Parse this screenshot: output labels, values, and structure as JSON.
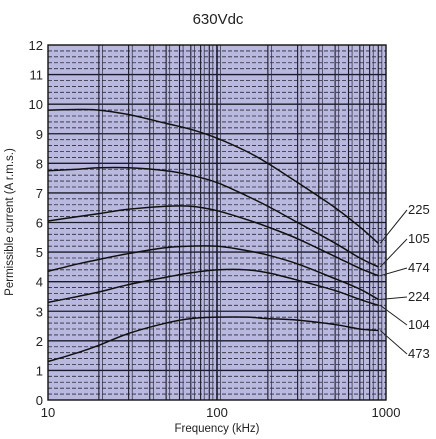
{
  "chart_data": {
    "type": "line",
    "title": "630Vdc",
    "xlabel": "Frequency (kHz)",
    "ylabel": "Permissible current (A r.m.s.)",
    "x_scale": "log",
    "xlim": [
      10,
      1000
    ],
    "ylim": [
      0,
      12
    ],
    "x_ticks": [
      "10",
      "100",
      "1000"
    ],
    "y_ticks": [
      "0",
      "1",
      "2",
      "3",
      "4",
      "5",
      "6",
      "7",
      "8",
      "9",
      "10",
      "11",
      "12"
    ],
    "grid": true,
    "plot_background": "#b9b8de",
    "line_color": "#111111",
    "series": [
      {
        "name": "225",
        "x": [
          10,
          15,
          20,
          30,
          50,
          70,
          100,
          150,
          200,
          300,
          500,
          700,
          900
        ],
        "y": [
          9.8,
          9.82,
          9.8,
          9.65,
          9.35,
          9.15,
          8.85,
          8.4,
          8.0,
          7.35,
          6.5,
          5.85,
          5.3
        ]
      },
      {
        "name": "105",
        "x": [
          10,
          15,
          20,
          30,
          50,
          70,
          100,
          150,
          200,
          300,
          500,
          700,
          900
        ],
        "y": [
          7.75,
          7.8,
          7.85,
          7.85,
          7.75,
          7.6,
          7.35,
          6.9,
          6.55,
          6.0,
          5.3,
          4.8,
          4.5
        ]
      },
      {
        "name": "474",
        "x": [
          10,
          15,
          20,
          30,
          50,
          70,
          100,
          150,
          200,
          300,
          500,
          700,
          900
        ],
        "y": [
          6.05,
          6.2,
          6.3,
          6.45,
          6.55,
          6.55,
          6.4,
          6.1,
          5.85,
          5.45,
          4.85,
          4.45,
          4.2
        ]
      },
      {
        "name": "224",
        "x": [
          10,
          15,
          20,
          30,
          50,
          70,
          100,
          150,
          200,
          300,
          500,
          700,
          900
        ],
        "y": [
          4.35,
          4.6,
          4.75,
          4.95,
          5.15,
          5.2,
          5.2,
          5.05,
          4.9,
          4.6,
          4.1,
          3.75,
          3.4
        ]
      },
      {
        "name": "104",
        "x": [
          10,
          15,
          20,
          30,
          50,
          70,
          100,
          150,
          200,
          300,
          500,
          700,
          900
        ],
        "y": [
          3.3,
          3.5,
          3.65,
          3.9,
          4.15,
          4.3,
          4.4,
          4.4,
          4.3,
          4.05,
          3.7,
          3.4,
          3.2
        ]
      },
      {
        "name": "473",
        "x": [
          10,
          15,
          20,
          30,
          50,
          70,
          100,
          150,
          200,
          300,
          500,
          700,
          900
        ],
        "y": [
          1.3,
          1.6,
          1.85,
          2.25,
          2.6,
          2.75,
          2.8,
          2.8,
          2.75,
          2.7,
          2.55,
          2.4,
          2.35
        ]
      }
    ]
  }
}
